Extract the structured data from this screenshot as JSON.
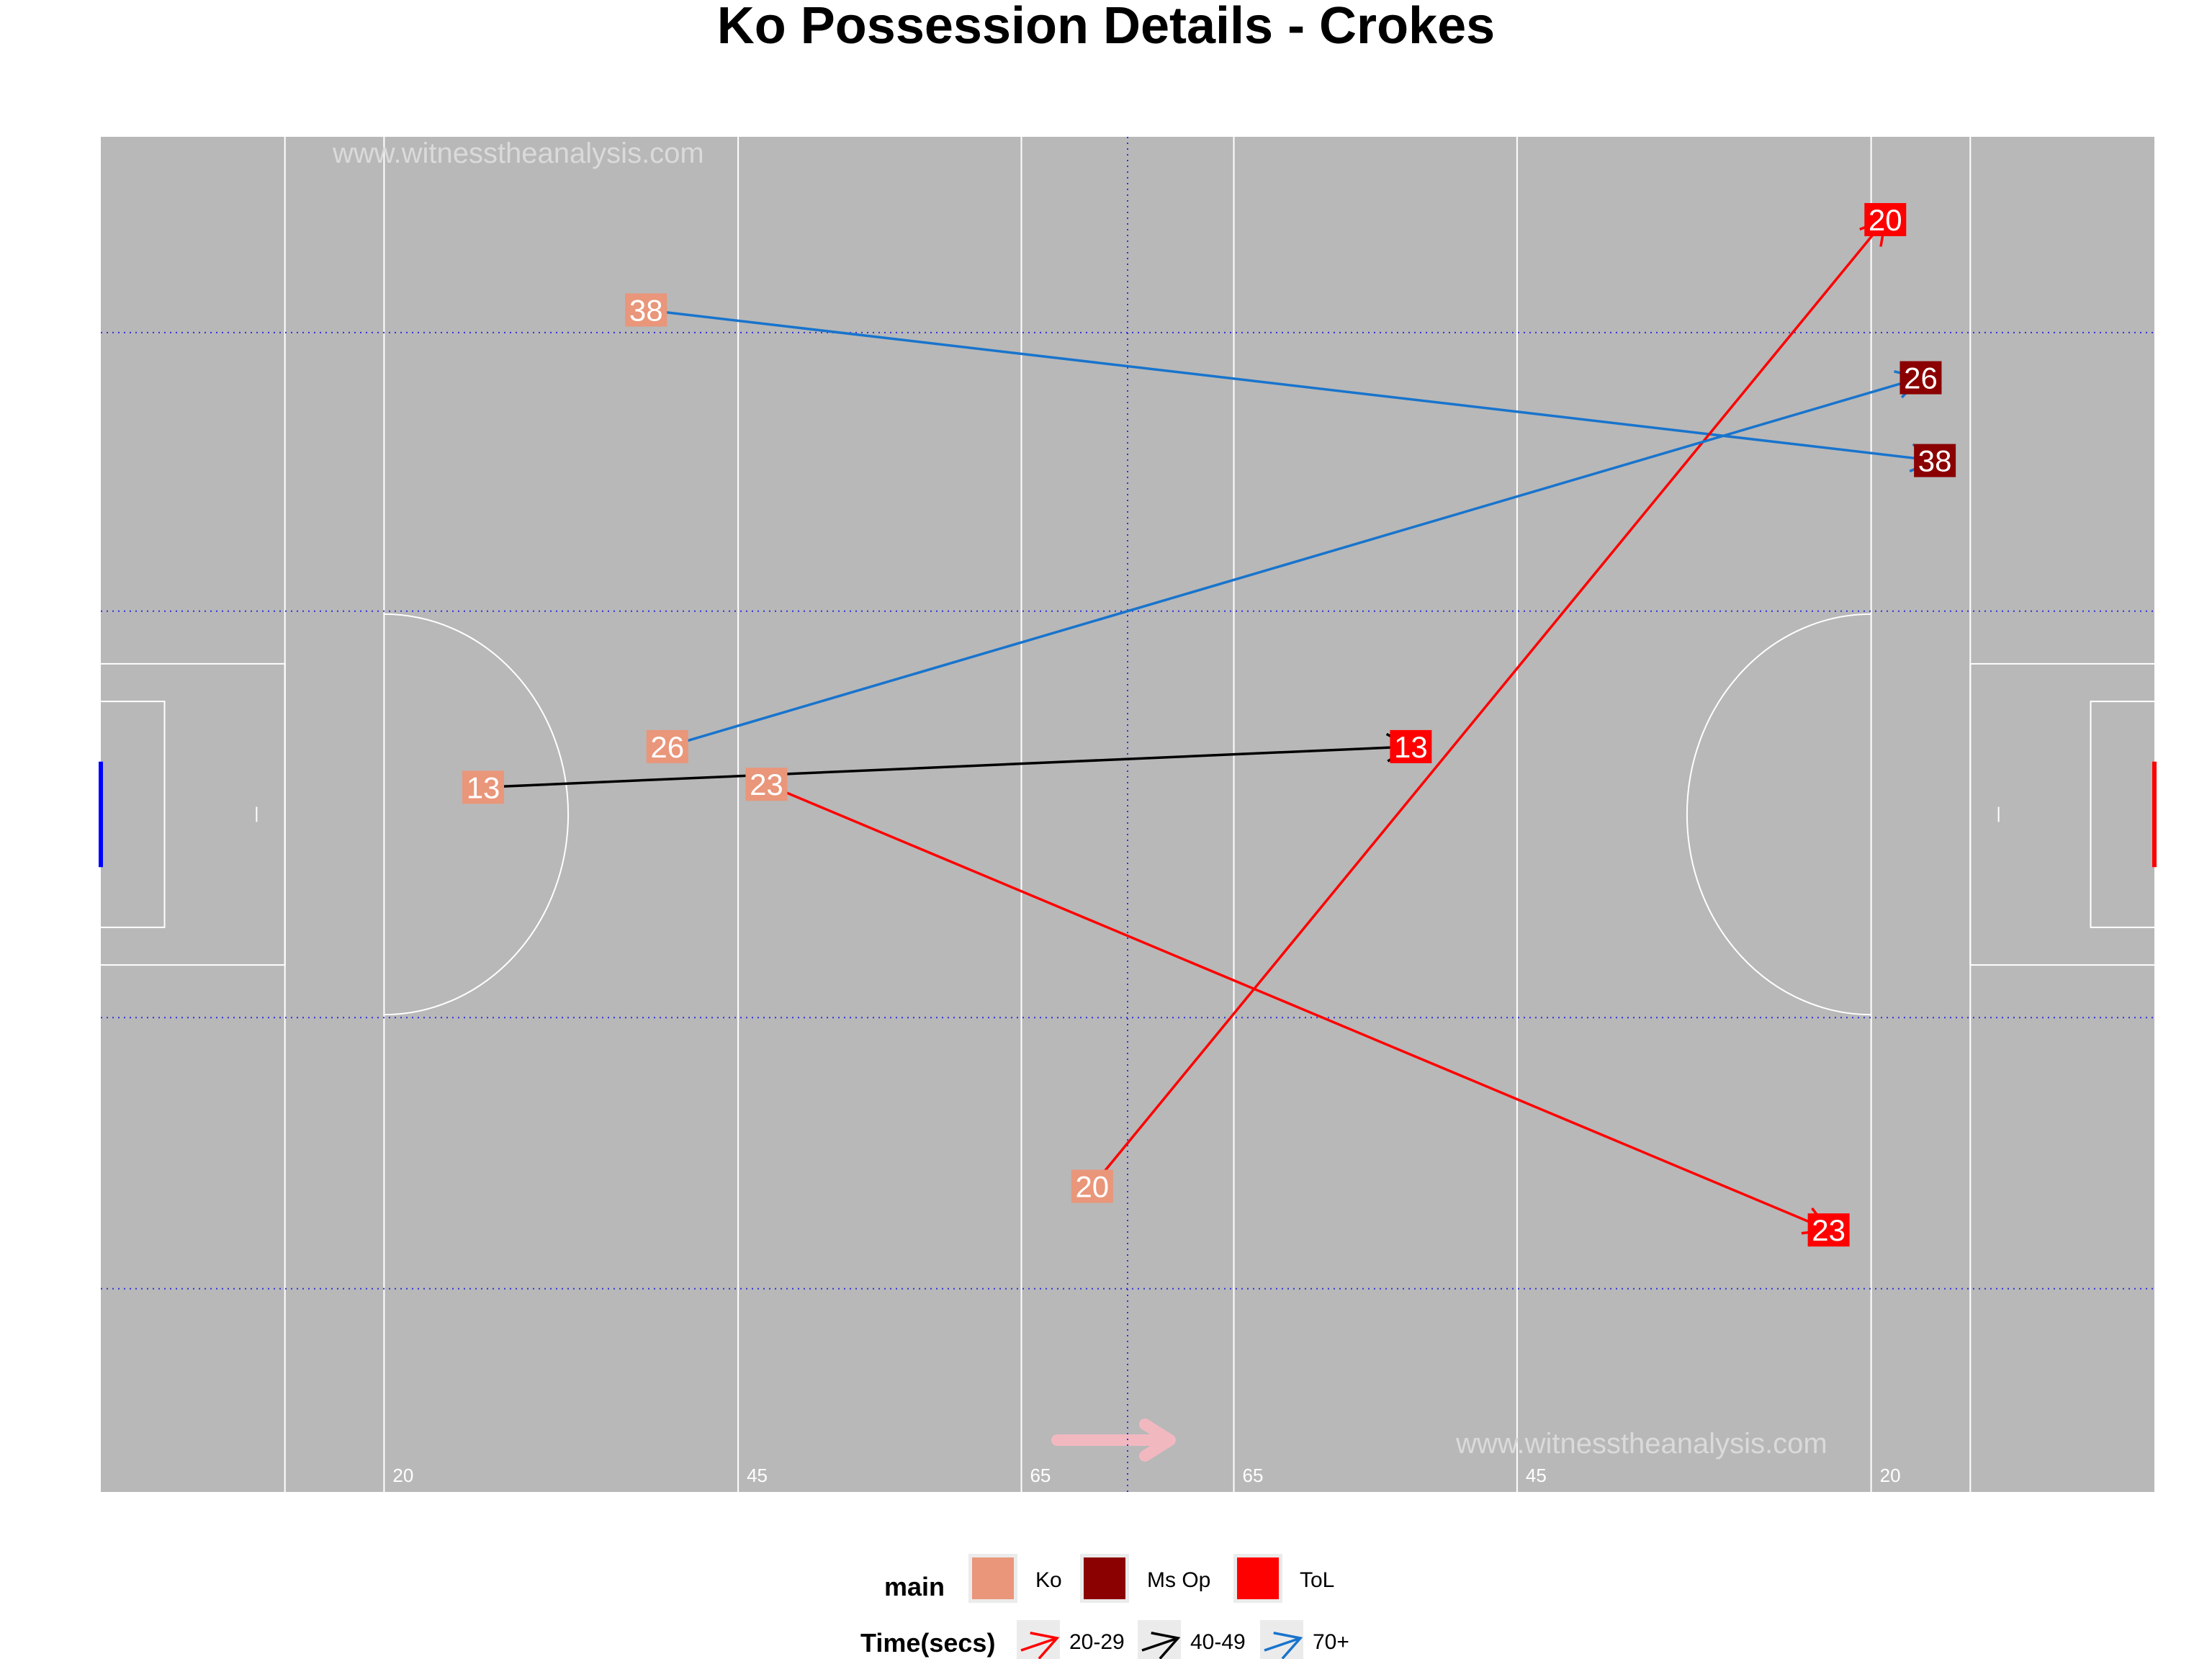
{
  "chart_data": {
    "type": "scatter",
    "title": "Ko Possession Details - Crokes",
    "watermark": "www.witnesstheanalysis.com",
    "xlim": [
      0,
      145
    ],
    "ylim": [
      0,
      90
    ],
    "pitch_line_labels": [
      {
        "x": 20,
        "label": "20"
      },
      {
        "x": 45,
        "label": "45"
      },
      {
        "x": 65,
        "label": "65"
      },
      {
        "x": 80,
        "label": "65"
      },
      {
        "x": 100,
        "label": "45"
      },
      {
        "x": 125,
        "label": "20"
      }
    ],
    "grid": {
      "x_dotted": [
        72.5
      ],
      "y_dotted": [
        13.5,
        31.5,
        58.5,
        77
      ]
    },
    "direction_arrow": "right",
    "end_colors": {
      "Ko": "#E9967A",
      "Ms Op": "#8B0000",
      "ToL": "#FF0000"
    },
    "time_colors": {
      "20-29": "#FF0000",
      "40-49": "#000000",
      "70+": "#1874CD"
    },
    "possessions": [
      {
        "label": "38",
        "x0": 38.5,
        "y0": 78.5,
        "x1": 129.5,
        "y1": 68.5,
        "end": "Ms Op",
        "time": "70+"
      },
      {
        "label": "20",
        "x0": 70.0,
        "y0": 20.3,
        "x1": 126.0,
        "y1": 84.5,
        "end": "ToL",
        "time": "20-29"
      },
      {
        "label": "26",
        "x0": 40.0,
        "y0": 49.5,
        "x1": 128.5,
        "y1": 74.0,
        "end": "Ms Op",
        "time": "70+"
      },
      {
        "label": "13",
        "x0": 27.0,
        "y0": 46.8,
        "x1": 92.5,
        "y1": 49.5,
        "end": "ToL",
        "time": "40-49"
      },
      {
        "label": "23",
        "x0": 47.0,
        "y0": 47.0,
        "x1": 122.0,
        "y1": 17.4,
        "end": "ToL",
        "time": "20-29"
      }
    ],
    "legend": {
      "placement": "bottom",
      "main_title": "main",
      "main_items": [
        "Ko",
        "Ms Op",
        "ToL"
      ],
      "time_title": "Time(secs)",
      "time_items": [
        "20-29",
        "40-49",
        "70+"
      ]
    }
  }
}
